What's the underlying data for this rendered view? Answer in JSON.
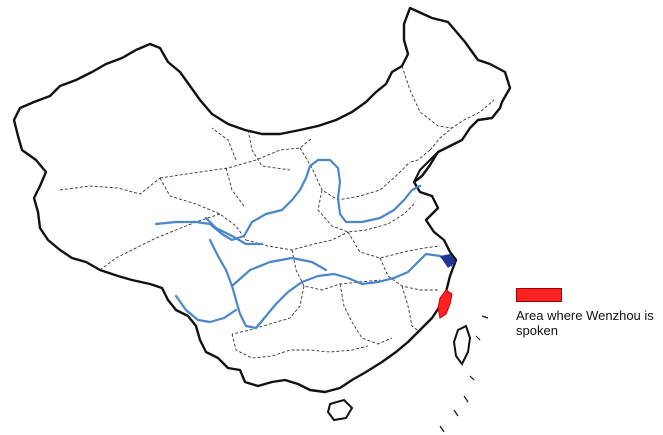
{
  "legend": {
    "label": "Area where Wenzhou is spoken",
    "color": "#ff2222"
  },
  "map": {
    "river_color": "#4a86c8",
    "region_color": "#ff2222",
    "outline_color": "#111111"
  }
}
